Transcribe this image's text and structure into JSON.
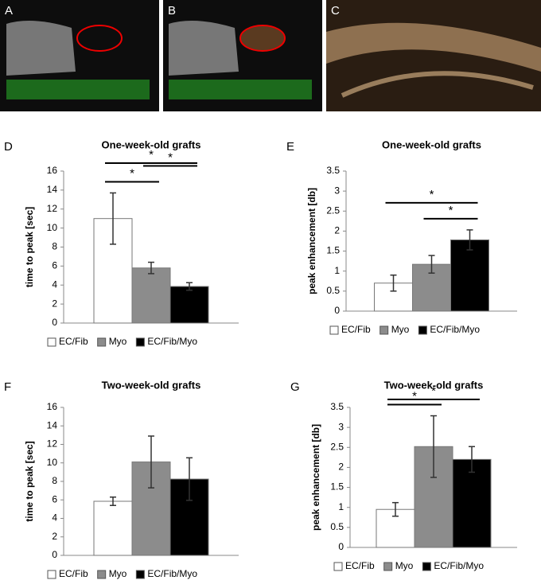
{
  "image_panels": [
    {
      "label": "A"
    },
    {
      "label": "B"
    },
    {
      "label": "C"
    }
  ],
  "chart_data": [
    {
      "type": "bar",
      "panel": "D",
      "title": "One-week-old grafts",
      "y_label": "time to peak [sec]",
      "categories": [
        "EC/Fib",
        "Myo",
        "EC/Fib/Myo"
      ],
      "values": [
        11,
        5.8,
        3.85
      ],
      "errors": [
        2.7,
        0.6,
        0.4
      ],
      "colors": [
        "#ffffff",
        "#8c8c8c",
        "#000000"
      ],
      "ylim": [
        0,
        16
      ],
      "yticks": [
        0,
        2,
        4,
        6,
        8,
        10,
        12,
        14,
        16
      ],
      "annotations": [
        {
          "text": "*",
          "between": [
            0,
            1
          ]
        },
        {
          "text": "*",
          "between": [
            1,
            2
          ]
        },
        {
          "text": "*",
          "between": [
            0,
            2
          ]
        }
      ]
    },
    {
      "type": "bar",
      "panel": "E",
      "title": "One-week-old grafts",
      "y_label": "peak enhancement [db]",
      "categories": [
        "EC/Fib",
        "Myo",
        "EC/Fib/Myo"
      ],
      "values": [
        0.7,
        1.17,
        1.78
      ],
      "errors": [
        0.2,
        0.22,
        0.25
      ],
      "colors": [
        "#ffffff",
        "#8c8c8c",
        "#000000"
      ],
      "ylim": [
        0,
        3.5
      ],
      "yticks": [
        0,
        0.5,
        1,
        1.5,
        2,
        2.5,
        3,
        3.5
      ],
      "annotations": [
        {
          "text": "*",
          "between": [
            1,
            2
          ]
        },
        {
          "text": "*",
          "between": [
            0,
            2
          ]
        }
      ]
    },
    {
      "type": "bar",
      "panel": "F",
      "title": "Two-week-old grafts",
      "y_label": "time to peak [sec]",
      "categories": [
        "EC/Fib",
        "Myo",
        "EC/Fib/Myo"
      ],
      "values": [
        5.85,
        10.1,
        8.25
      ],
      "errors": [
        0.45,
        2.8,
        2.3
      ],
      "colors": [
        "#ffffff",
        "#8c8c8c",
        "#000000"
      ],
      "ylim": [
        0,
        16
      ],
      "yticks": [
        0,
        2,
        4,
        6,
        8,
        10,
        12,
        14,
        16
      ],
      "annotations": []
    },
    {
      "type": "bar",
      "panel": "G",
      "title": "Two-week-old grafts",
      "y_label": "peak enhancement [db]",
      "categories": [
        "EC/Fib",
        "Myo",
        "EC/Fib/Myo"
      ],
      "values": [
        0.95,
        2.52,
        2.2
      ],
      "errors": [
        0.17,
        0.77,
        0.32
      ],
      "colors": [
        "#ffffff",
        "#8c8c8c",
        "#000000"
      ],
      "ylim": [
        0,
        3.5
      ],
      "yticks": [
        0,
        0.5,
        1,
        1.5,
        2,
        2.5,
        3,
        3.5
      ],
      "annotations": [
        {
          "text": "*",
          "between": [
            0,
            1
          ]
        },
        {
          "text": "*",
          "between": [
            0,
            2
          ]
        }
      ]
    }
  ]
}
